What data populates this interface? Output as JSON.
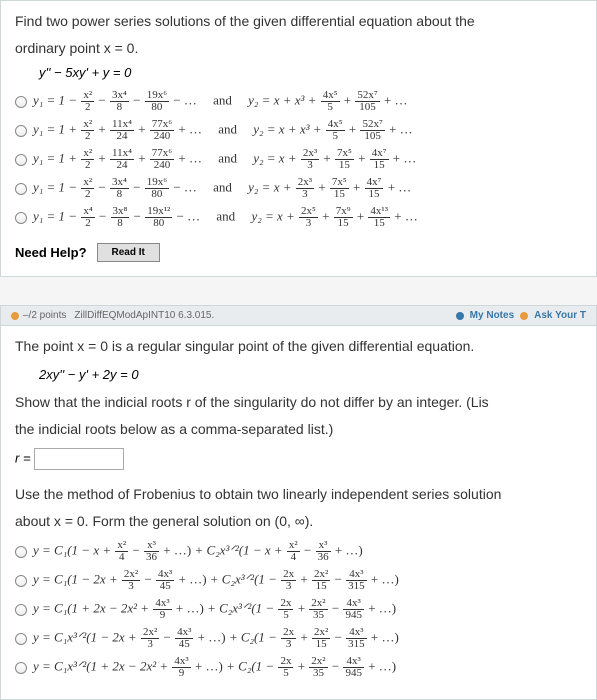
{
  "colors": {
    "panel_bg": "#ffffff",
    "panel_border": "#cfd8d8",
    "text": "#333333",
    "bar_bg": "#e8ecee",
    "btn_bg": "#e0e0e0",
    "dot_orange": "#e89b3c",
    "dot_blue": "#3878a8",
    "link_blue": "#3878a8"
  },
  "q1": {
    "prompt_line1": "Find two power series solutions of the given differential equation about the",
    "prompt_line2": "ordinary point x = 0.",
    "equation": "y'' − 5xy' + y = 0",
    "options": [
      {
        "y1_lead": "y₁ = 1 −",
        "y1_terms": [
          {
            "num": "x²",
            "den": "2",
            "sign": "−"
          },
          {
            "num": "3x⁴",
            "den": "8",
            "sign": "−"
          },
          {
            "num": "19x⁶",
            "den": "80",
            "sign": "− …"
          }
        ],
        "and": "and",
        "y2_lead": "y₂ = x + x³ +",
        "y2_terms": [
          {
            "num": "4x⁵",
            "den": "5",
            "sign": "+"
          },
          {
            "num": "52x⁷",
            "den": "105",
            "sign": "+ …"
          }
        ]
      },
      {
        "y1_lead": "y₁ = 1 +",
        "y1_terms": [
          {
            "num": "x²",
            "den": "2",
            "sign": "+"
          },
          {
            "num": "11x⁴",
            "den": "24",
            "sign": "+"
          },
          {
            "num": "77x⁶",
            "den": "240",
            "sign": "+ …"
          }
        ],
        "and": "and",
        "y2_lead": "y₂ = x + x³ +",
        "y2_terms": [
          {
            "num": "4x⁵",
            "den": "5",
            "sign": "+"
          },
          {
            "num": "52x⁷",
            "den": "105",
            "sign": "+ …"
          }
        ]
      },
      {
        "y1_lead": "y₁ = 1 +",
        "y1_terms": [
          {
            "num": "x²",
            "den": "2",
            "sign": "+"
          },
          {
            "num": "11x⁴",
            "den": "24",
            "sign": "+"
          },
          {
            "num": "77x⁶",
            "den": "240",
            "sign": "+ …"
          }
        ],
        "and": "and",
        "y2_lead": "y₂ = x +",
        "y2_terms": [
          {
            "num": "2x³",
            "den": "3",
            "sign": "+"
          },
          {
            "num": "7x⁵",
            "den": "15",
            "sign": "+"
          },
          {
            "num": "4x⁷",
            "den": "15",
            "sign": "+ …"
          }
        ]
      },
      {
        "y1_lead": "y₁ = 1 −",
        "y1_terms": [
          {
            "num": "x²",
            "den": "2",
            "sign": "−"
          },
          {
            "num": "3x⁴",
            "den": "8",
            "sign": "−"
          },
          {
            "num": "19x⁶",
            "den": "80",
            "sign": "− …"
          }
        ],
        "and": "and",
        "y2_lead": "y₂ = x +",
        "y2_terms": [
          {
            "num": "2x³",
            "den": "3",
            "sign": "+"
          },
          {
            "num": "7x⁵",
            "den": "15",
            "sign": "+"
          },
          {
            "num": "4x⁷",
            "den": "15",
            "sign": "+ …"
          }
        ]
      },
      {
        "y1_lead": "y₁ = 1 −",
        "y1_terms": [
          {
            "num": "x⁴",
            "den": "2",
            "sign": "−"
          },
          {
            "num": "3x⁸",
            "den": "8",
            "sign": "−"
          },
          {
            "num": "19x¹²",
            "den": "80",
            "sign": "− …"
          }
        ],
        "and": "and",
        "y2_lead": "y₂ = x +",
        "y2_terms": [
          {
            "num": "2x⁵",
            "den": "3",
            "sign": "+"
          },
          {
            "num": "7x⁹",
            "den": "15",
            "sign": "+"
          },
          {
            "num": "4x¹³",
            "den": "15",
            "sign": "+ …"
          }
        ]
      }
    ],
    "need_help_label": "Need Help?",
    "read_it_label": "Read It"
  },
  "points_bar": {
    "points": "–/2 points",
    "ref": "ZillDiffEQModApINT10 6.3.015.",
    "my_notes": "My Notes",
    "ask": "Ask Your T"
  },
  "q2": {
    "line1": "The point x = 0 is a regular singular point of the given differential equation.",
    "equation": "2xy'' − y' + 2y = 0",
    "line2a": "Show that the indicial roots r of the singularity do not differ by an integer. (Lis",
    "line2b": "the indicial roots below as a comma-separated list.)",
    "r_label": "r =",
    "line3a": "Use the method of Frobenius to obtain two linearly independent series solution",
    "line3b": "about x = 0. Form the general solution on (0, ∞).",
    "options": [
      "y = C₁(1 − x + x²/4 − x³/36 + …) + C₂x³ᐟ²(1 − x + x²/4 − x³/36 + …)",
      "y = C₁(1 − 2x + 2x²/3 − 4x³/45 + …) + C₂x³ᐟ²(1 − 2x/3 + 2x²/15 − 4x³/315 + …)",
      "y = C₁(1 + 2x − 2x² + 4x³/9 + …) + C₂x³ᐟ²(1 − 2x/5 + 2x²/35 − 4x³/945 + …)",
      "y = C₁x³ᐟ²(1 − 2x + 2x²/3 − 4x³/45 + …) + C₂(1 − 2x/3 + 2x²/15 − 4x³/315 + …)",
      "y = C₁x³ᐟ²(1 + 2x − 2x² + 4x³/9 + …) + C₂(1 − 2x/5 + 2x²/35 − 4x³/945 + …)"
    ],
    "opt_detail": [
      {
        "c1_lead": "y = C₁(1 − x +",
        "c1_terms": [
          {
            "num": "x²",
            "den": "4",
            "sign": "−"
          },
          {
            "num": "x³",
            "den": "36",
            "sign": "+ …)"
          }
        ],
        "c2_lead": "+ C₂x³ᐟ²(1 − x +",
        "c2_terms": [
          {
            "num": "x²",
            "den": "4",
            "sign": "−"
          },
          {
            "num": "x³",
            "den": "36",
            "sign": "+ …)"
          }
        ]
      },
      {
        "c1_lead": "y = C₁(1 − 2x +",
        "c1_terms": [
          {
            "num": "2x²",
            "den": "3",
            "sign": "−"
          },
          {
            "num": "4x³",
            "den": "45",
            "sign": "+ …)"
          }
        ],
        "c2_lead": "+ C₂x³ᐟ²(1 −",
        "c2_terms": [
          {
            "num": "2x",
            "den": "3",
            "sign": "+"
          },
          {
            "num": "2x²",
            "den": "15",
            "sign": "−"
          },
          {
            "num": "4x³",
            "den": "315",
            "sign": "+ …)"
          }
        ]
      },
      {
        "c1_lead": "y = C₁(1 + 2x − 2x² +",
        "c1_terms": [
          {
            "num": "4x³",
            "den": "9",
            "sign": "+ …)"
          }
        ],
        "c2_lead": "+ C₂x³ᐟ²(1 −",
        "c2_terms": [
          {
            "num": "2x",
            "den": "5",
            "sign": "+"
          },
          {
            "num": "2x²",
            "den": "35",
            "sign": "−"
          },
          {
            "num": "4x³",
            "den": "945",
            "sign": "+ …)"
          }
        ]
      },
      {
        "c1_lead": "y = C₁x³ᐟ²(1 − 2x +",
        "c1_terms": [
          {
            "num": "2x²",
            "den": "3",
            "sign": "−"
          },
          {
            "num": "4x³",
            "den": "45",
            "sign": "+ …)"
          }
        ],
        "c2_lead": "+ C₂(1 −",
        "c2_terms": [
          {
            "num": "2x",
            "den": "3",
            "sign": "+"
          },
          {
            "num": "2x²",
            "den": "15",
            "sign": "−"
          },
          {
            "num": "4x³",
            "den": "315",
            "sign": "+ …)"
          }
        ]
      },
      {
        "c1_lead": "y = C₁x³ᐟ²(1 + 2x − 2x² +",
        "c1_terms": [
          {
            "num": "4x³",
            "den": "9",
            "sign": "+ …)"
          }
        ],
        "c2_lead": "+ C₂(1 −",
        "c2_terms": [
          {
            "num": "2x",
            "den": "5",
            "sign": "+"
          },
          {
            "num": "2x²",
            "den": "35",
            "sign": "−"
          },
          {
            "num": "4x³",
            "den": "945",
            "sign": "+ …)"
          }
        ]
      }
    ]
  }
}
